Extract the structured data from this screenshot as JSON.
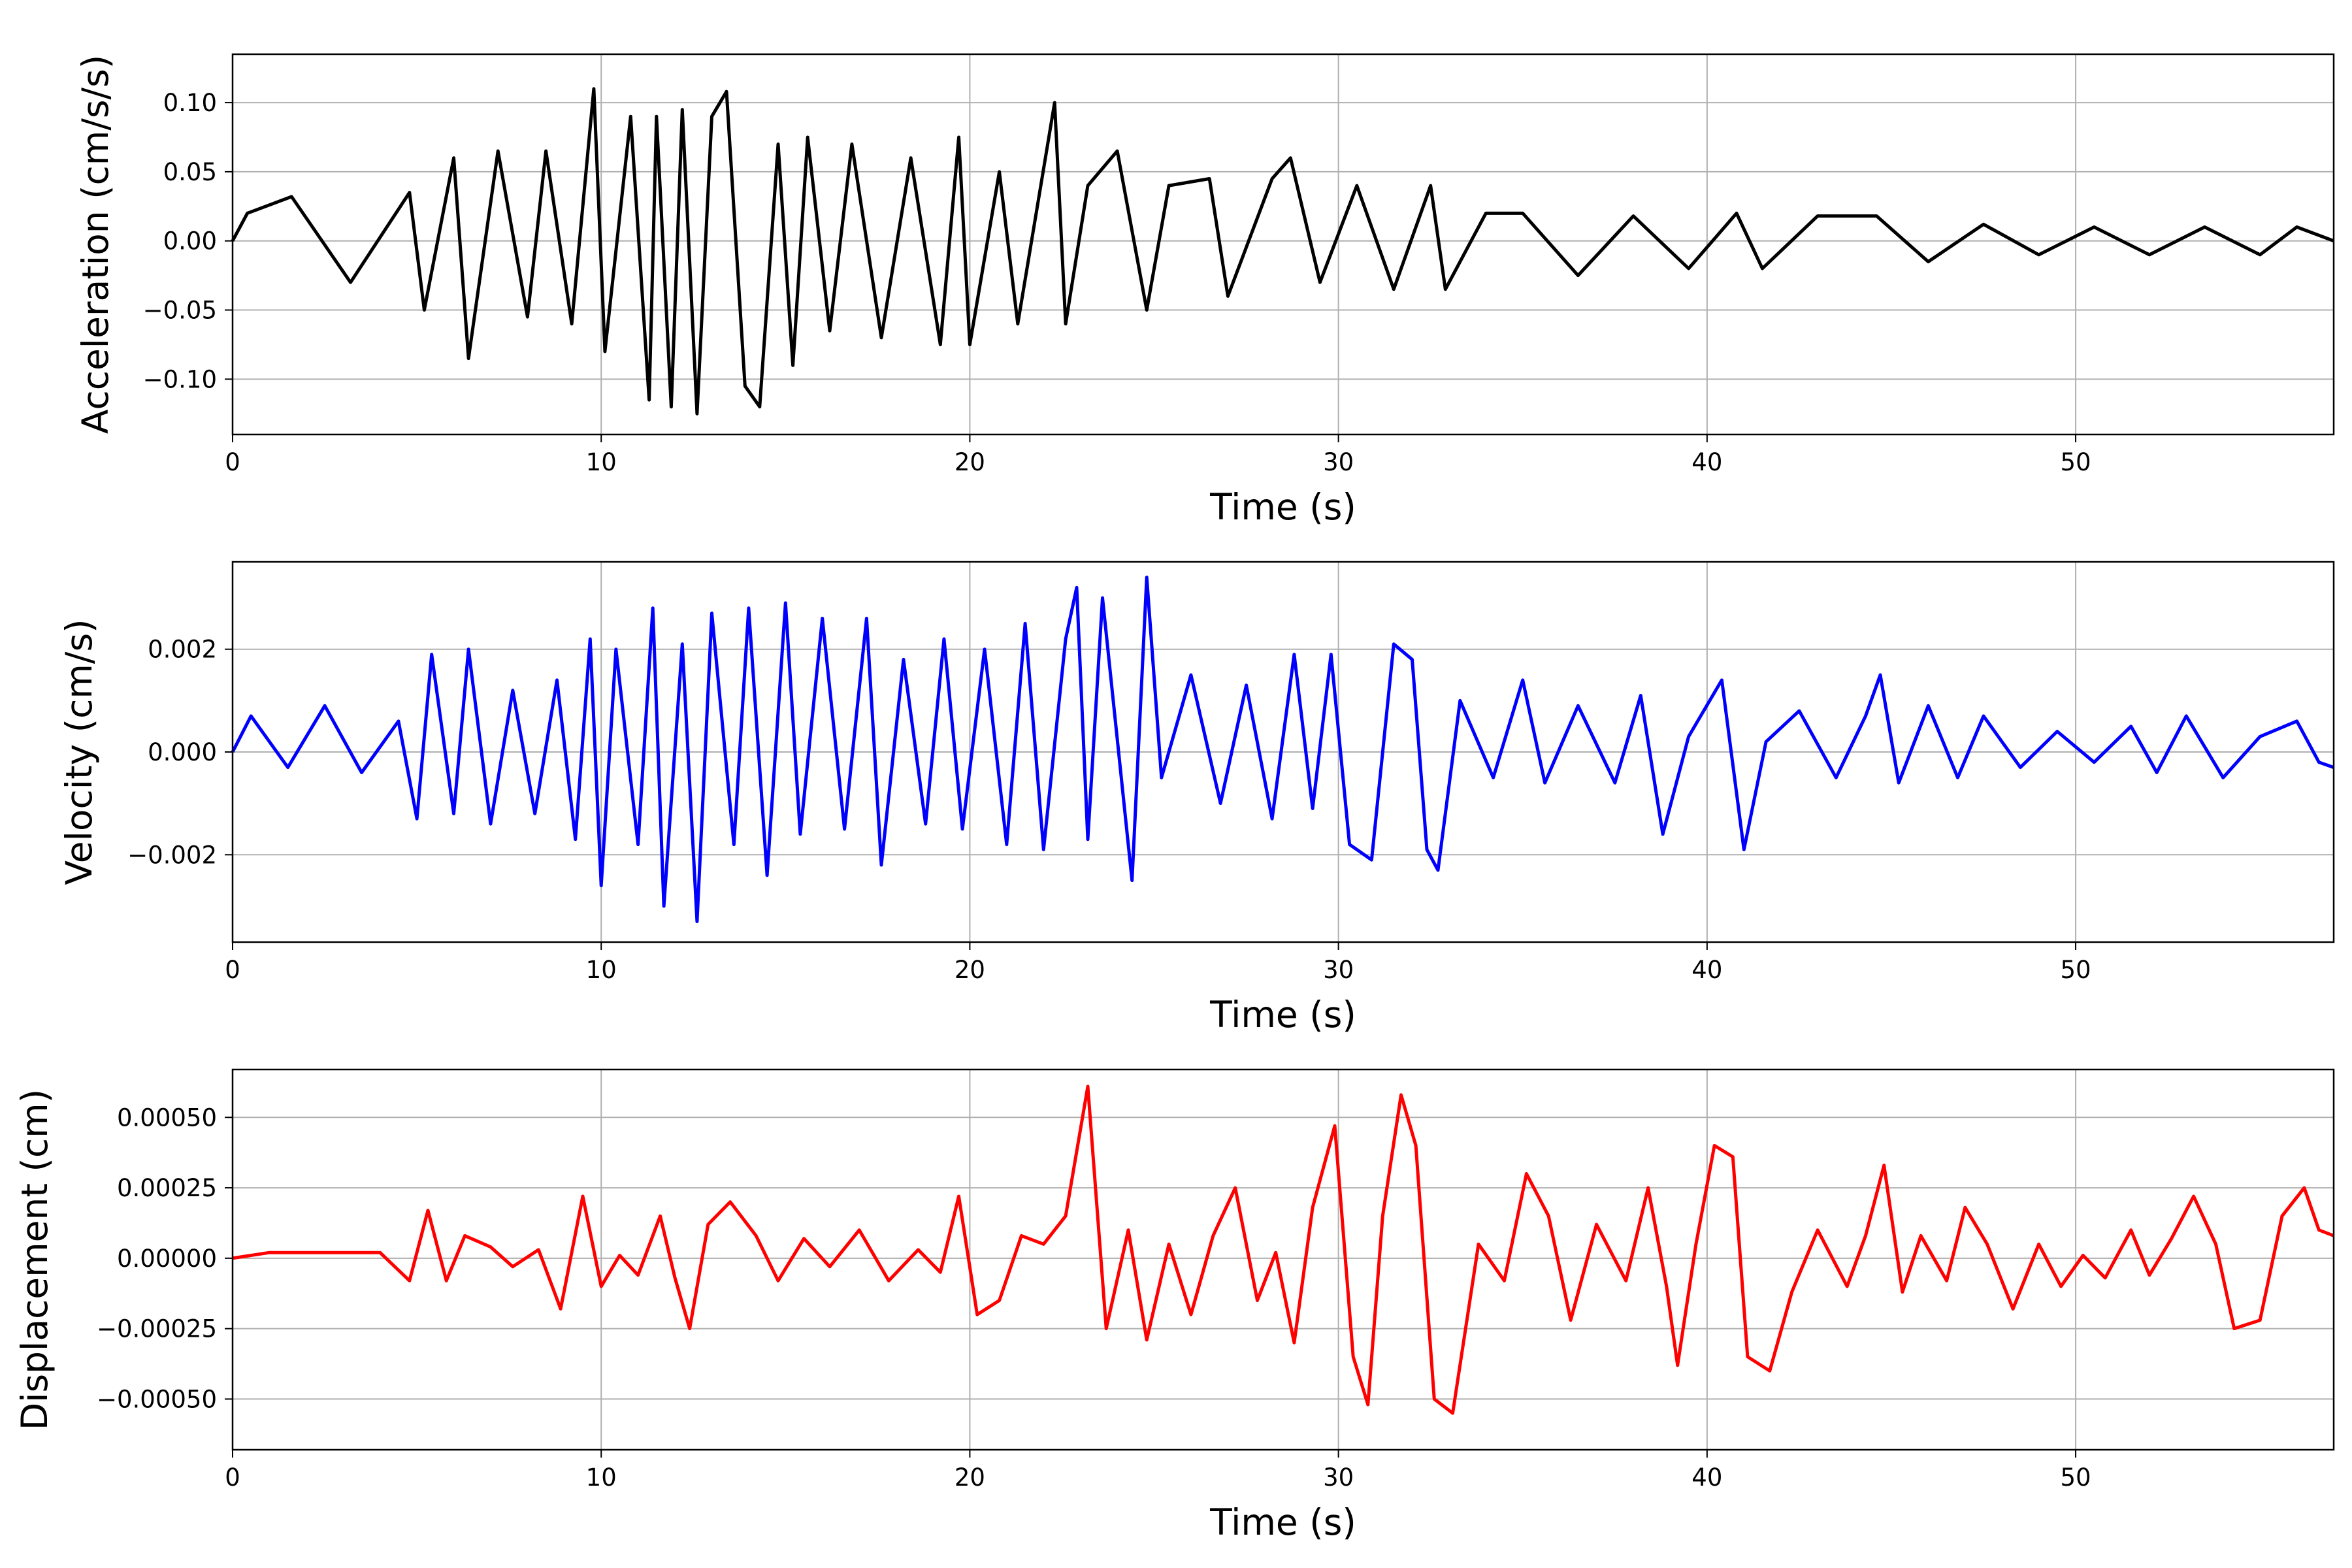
{
  "chart_data": [
    {
      "type": "line",
      "title": "",
      "xlabel": "Time (s)",
      "ylabel": "Acceleration (cm/s/s)",
      "xlim": [
        0,
        57
      ],
      "ylim": [
        -0.14,
        0.135
      ],
      "grid": true,
      "x_ticks": [
        0,
        10,
        20,
        30,
        40,
        50
      ],
      "x_tick_labels": [
        "0",
        "10",
        "20",
        "30",
        "40",
        "50"
      ],
      "y_ticks": [
        -0.1,
        -0.05,
        0.0,
        0.05,
        0.1
      ],
      "y_tick_labels": [
        "−0.10",
        "−0.05",
        "0.00",
        "0.05",
        "0.10"
      ],
      "series": [
        {
          "color": "#000000",
          "sampling": "dense noise-like record; sample points approximate the visible envelope and peaks",
          "x": [
            0,
            0.4,
            1.6,
            3.2,
            4.8,
            5.2,
            6.0,
            6.4,
            7.2,
            8.0,
            8.5,
            9.2,
            9.8,
            10.1,
            10.8,
            11.3,
            11.5,
            11.9,
            12.2,
            12.6,
            13.0,
            13.4,
            13.9,
            14.3,
            14.8,
            15.2,
            15.6,
            16.2,
            16.8,
            17.6,
            18.4,
            19.2,
            19.7,
            20.0,
            20.8,
            21.3,
            22.3,
            22.6,
            23.2,
            24.0,
            24.8,
            25.4,
            26.5,
            27.0,
            28.2,
            28.7,
            29.5,
            30.5,
            31.5,
            32.5,
            32.9,
            34.0,
            35.0,
            36.5,
            38.0,
            39.5,
            40.8,
            41.5,
            43.0,
            44.6,
            46.0,
            47.5,
            49.0,
            50.5,
            52.0,
            53.5,
            55.0,
            56.0,
            57.0
          ],
          "y": [
            0.0,
            0.02,
            0.032,
            -0.03,
            0.035,
            -0.05,
            0.06,
            -0.085,
            0.065,
            -0.055,
            0.065,
            -0.06,
            0.11,
            -0.08,
            0.09,
            -0.115,
            0.09,
            -0.12,
            0.095,
            -0.125,
            0.09,
            0.108,
            -0.105,
            -0.12,
            0.07,
            -0.09,
            0.075,
            -0.065,
            0.07,
            -0.07,
            0.06,
            -0.075,
            0.075,
            -0.075,
            0.05,
            -0.06,
            0.1,
            -0.06,
            0.04,
            0.065,
            -0.05,
            0.04,
            0.045,
            -0.04,
            0.045,
            0.06,
            -0.03,
            0.04,
            -0.035,
            0.04,
            -0.035,
            0.02,
            0.02,
            -0.025,
            0.018,
            -0.02,
            0.02,
            -0.02,
            0.018,
            0.018,
            -0.015,
            0.012,
            -0.01,
            0.01,
            -0.01,
            0.01,
            -0.01,
            0.01,
            0.0
          ]
        }
      ]
    },
    {
      "type": "line",
      "title": "",
      "xlabel": "Time (s)",
      "ylabel": "Velocity (cm/s)",
      "xlim": [
        0,
        57
      ],
      "ylim": [
        -0.0037,
        0.0037
      ],
      "grid": true,
      "x_ticks": [
        0,
        10,
        20,
        30,
        40,
        50
      ],
      "x_tick_labels": [
        "0",
        "10",
        "20",
        "30",
        "40",
        "50"
      ],
      "y_ticks": [
        -0.002,
        0.0,
        0.002
      ],
      "y_tick_labels": [
        "−0.002",
        "0.000",
        "0.002"
      ],
      "series": [
        {
          "color": "#0000ff",
          "x": [
            0,
            0.5,
            1.5,
            2.5,
            3.5,
            4.5,
            5.0,
            5.4,
            6.0,
            6.4,
            7.0,
            7.6,
            8.2,
            8.8,
            9.3,
            9.7,
            10.0,
            10.4,
            11.0,
            11.4,
            11.7,
            12.2,
            12.6,
            13.0,
            13.6,
            14.0,
            14.5,
            15.0,
            15.4,
            16.0,
            16.6,
            17.2,
            17.6,
            18.2,
            18.8,
            19.3,
            19.8,
            20.4,
            21.0,
            21.5,
            22.0,
            22.6,
            22.9,
            23.2,
            23.6,
            24.4,
            24.8,
            25.2,
            26.0,
            26.8,
            27.5,
            28.2,
            28.8,
            29.3,
            29.8,
            30.3,
            30.9,
            31.5,
            32.0,
            32.4,
            32.7,
            33.3,
            34.2,
            35.0,
            35.6,
            36.5,
            37.5,
            38.2,
            38.8,
            39.5,
            40.4,
            41.0,
            41.6,
            42.5,
            43.5,
            44.3,
            44.7,
            45.2,
            46.0,
            46.8,
            47.5,
            48.5,
            49.5,
            50.5,
            51.5,
            52.2,
            53.0,
            54.0,
            55.0,
            56.0,
            56.6,
            57.0
          ],
          "y": [
            0.0,
            0.0007,
            -0.0003,
            0.0009,
            -0.0004,
            0.0006,
            -0.0013,
            0.0019,
            -0.0012,
            0.002,
            -0.0014,
            0.0012,
            -0.0012,
            0.0014,
            -0.0017,
            0.0022,
            -0.0026,
            0.002,
            -0.0018,
            0.0028,
            -0.003,
            0.0021,
            -0.0033,
            0.0027,
            -0.0018,
            0.0028,
            -0.0024,
            0.0029,
            -0.0016,
            0.0026,
            -0.0015,
            0.0026,
            -0.0022,
            0.0018,
            -0.0014,
            0.0022,
            -0.0015,
            0.002,
            -0.0018,
            0.0025,
            -0.0019,
            0.0022,
            0.0032,
            -0.0017,
            0.003,
            -0.0025,
            0.0034,
            -0.0005,
            0.0015,
            -0.001,
            0.0013,
            -0.0013,
            0.0019,
            -0.0011,
            0.0019,
            -0.0018,
            -0.0021,
            0.0021,
            0.0018,
            -0.0019,
            -0.0023,
            0.001,
            -0.0005,
            0.0014,
            -0.0006,
            0.0009,
            -0.0006,
            0.0011,
            -0.0016,
            0.0003,
            0.0014,
            -0.0019,
            0.0002,
            0.0008,
            -0.0005,
            0.0007,
            0.0015,
            -0.0006,
            0.0009,
            -0.0005,
            0.0007,
            -0.0003,
            0.0004,
            -0.0002,
            0.0005,
            -0.0004,
            0.0007,
            -0.0005,
            0.0003,
            0.0006,
            -0.0002,
            -0.0003
          ]
        }
      ]
    },
    {
      "type": "line",
      "title": "",
      "xlabel": "Time (s)",
      "ylabel": "Displacement (cm)",
      "xlim": [
        0,
        57
      ],
      "ylim": [
        -0.00068,
        0.00067
      ],
      "grid": true,
      "x_ticks": [
        0,
        10,
        20,
        30,
        40,
        50
      ],
      "x_tick_labels": [
        "0",
        "10",
        "20",
        "30",
        "40",
        "50"
      ],
      "y_ticks": [
        -0.0005,
        -0.00025,
        0.0,
        0.00025,
        0.0005
      ],
      "y_tick_labels": [
        "−0.00050",
        "−0.00025",
        "0.00000",
        "0.00025",
        "0.00050"
      ],
      "series": [
        {
          "color": "#ff0000",
          "x": [
            0,
            1.0,
            2.0,
            3.0,
            4.0,
            4.8,
            5.3,
            5.8,
            6.3,
            7.0,
            7.6,
            8.3,
            8.9,
            9.5,
            10.0,
            10.5,
            11.0,
            11.6,
            12.0,
            12.4,
            12.9,
            13.5,
            14.2,
            14.8,
            15.5,
            16.2,
            17.0,
            17.8,
            18.6,
            19.2,
            19.7,
            20.2,
            20.8,
            21.4,
            22.0,
            22.6,
            23.2,
            23.7,
            24.3,
            24.8,
            25.4,
            26.0,
            26.6,
            27.2,
            27.8,
            28.3,
            28.8,
            29.3,
            29.9,
            30.4,
            30.8,
            31.2,
            31.7,
            32.1,
            32.6,
            33.1,
            33.8,
            34.5,
            35.1,
            35.7,
            36.3,
            37.0,
            37.8,
            38.4,
            38.9,
            39.2,
            39.7,
            40.2,
            40.7,
            41.1,
            41.7,
            42.3,
            43.0,
            43.8,
            44.3,
            44.8,
            45.3,
            45.8,
            46.5,
            47.0,
            47.6,
            48.3,
            49.0,
            49.6,
            50.2,
            50.8,
            51.5,
            52.0,
            52.6,
            53.2,
            53.8,
            54.3,
            55.0,
            55.6,
            56.2,
            56.6,
            57.0
          ],
          "y": [
            0.0,
            2e-05,
            2e-05,
            2e-05,
            2e-05,
            -8e-05,
            0.00017,
            -8e-05,
            8e-05,
            4e-05,
            -3e-05,
            3e-05,
            -0.00018,
            0.00022,
            -0.0001,
            1e-05,
            -6e-05,
            0.00015,
            -7e-05,
            -0.00025,
            0.00012,
            0.0002,
            8e-05,
            -8e-05,
            7e-05,
            -3e-05,
            0.0001,
            -8e-05,
            3e-05,
            -5e-05,
            0.00022,
            -0.0002,
            -0.00015,
            8e-05,
            5e-05,
            0.00015,
            0.00061,
            -0.00025,
            0.0001,
            -0.00029,
            5e-05,
            -0.0002,
            8e-05,
            0.00025,
            -0.00015,
            2e-05,
            -0.0003,
            0.00018,
            0.00047,
            -0.00035,
            -0.00052,
            0.00015,
            0.00058,
            0.0004,
            -0.0005,
            -0.00055,
            5e-05,
            -8e-05,
            0.0003,
            0.00015,
            -0.00022,
            0.00012,
            -8e-05,
            0.00025,
            -0.0001,
            -0.00038,
            5e-05,
            0.0004,
            0.00036,
            -0.00035,
            -0.0004,
            -0.00012,
            0.0001,
            -0.0001,
            8e-05,
            0.00033,
            -0.00012,
            8e-05,
            -8e-05,
            0.00018,
            5e-05,
            -0.00018,
            5e-05,
            -0.0001,
            1e-05,
            -7e-05,
            0.0001,
            -6e-05,
            7e-05,
            0.00022,
            5e-05,
            -0.00025,
            -0.00022,
            0.00015,
            0.00025,
            0.0001,
            8e-05
          ]
        }
      ]
    }
  ]
}
